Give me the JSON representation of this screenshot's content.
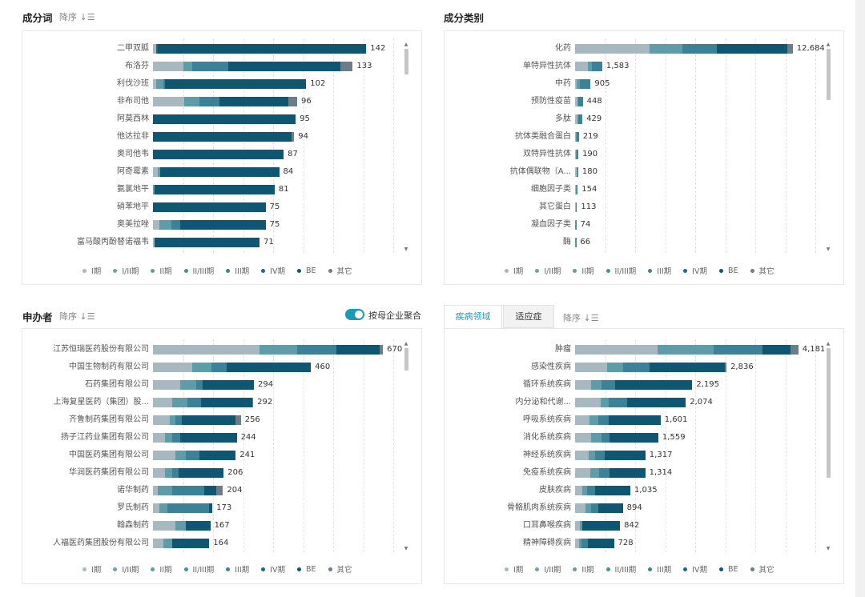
{
  "colors": {
    "phases": [
      "#a7b8c0",
      "#6fa1b0",
      "#5e9caa",
      "#498ea3",
      "#3b8298",
      "#1e6a85",
      "#0f5673",
      "#6b7d87"
    ],
    "accent": "#1a9bb5",
    "grid": "#e3e3e3"
  },
  "legend": [
    "I期",
    "I/II期",
    "II期",
    "II/III期",
    "III期",
    "IV期",
    "BE",
    "其它"
  ],
  "panels": {
    "ingredient": {
      "title": "成分词",
      "sort_label": "降序",
      "sort_icon": "sort-descending-icon"
    },
    "category": {
      "title": "成分类别"
    },
    "sponsor": {
      "title": "申办者",
      "sort_label": "降序",
      "toggle_label": "按母企业聚合",
      "toggle_on": true
    },
    "disease": {
      "tabs": [
        "疾病领域",
        "适应症"
      ],
      "active_tab": 0,
      "sort_label": "降序"
    }
  },
  "chart_data": [
    {
      "type": "bar",
      "orientation": "horizontal",
      "stacked": true,
      "name": "ingredient",
      "categories": [
        "二甲双胍",
        "布洛芬",
        "利伐沙班",
        "非布司他",
        "阿莫西林",
        "他达拉非",
        "奥司他韦",
        "阿奇霉素",
        "氨氯地平",
        "硝苯地平",
        "奥美拉唑",
        "富马酸丙酚替诺福韦"
      ],
      "totals": [
        142,
        133,
        102,
        96,
        95,
        94,
        87,
        84,
        81,
        75,
        75,
        71
      ],
      "series_names": [
        "I期",
        "I/II期",
        "II期",
        "II/III期",
        "III期",
        "IV期",
        "BE",
        "其它"
      ],
      "segments": [
        [
          2,
          0,
          0,
          0,
          0,
          1,
          139,
          0
        ],
        [
          20,
          0,
          6,
          0,
          24,
          0,
          75,
          8
        ],
        [
          2,
          0,
          5,
          0,
          1,
          0,
          94,
          0
        ],
        [
          21,
          0,
          10,
          0,
          13,
          0,
          46,
          6
        ],
        [
          0,
          0,
          0,
          0,
          0,
          0,
          95,
          0
        ],
        [
          0,
          0,
          0,
          0,
          0,
          0,
          92,
          2
        ],
        [
          0,
          0,
          0,
          0,
          0,
          0,
          87,
          0
        ],
        [
          3,
          0,
          2,
          0,
          0,
          0,
          79,
          0
        ],
        [
          0,
          0,
          1,
          0,
          0,
          0,
          80,
          0
        ],
        [
          0,
          0,
          0,
          0,
          0,
          0,
          75,
          0
        ],
        [
          4,
          0,
          8,
          0,
          6,
          0,
          57,
          0
        ],
        [
          1,
          0,
          0,
          0,
          0,
          0,
          70,
          0
        ]
      ],
      "xlim": [
        0,
        160
      ]
    },
    {
      "type": "bar",
      "orientation": "horizontal",
      "stacked": true,
      "name": "category",
      "categories": [
        "化药",
        "单特异性抗体",
        "中药",
        "预防性疫苗",
        "多肽",
        "抗体类融合蛋白",
        "双特异性抗体",
        "抗体偶联物（A...",
        "细胞因子类",
        "其它蛋白",
        "凝血因子类",
        "酶"
      ],
      "totals": [
        12684,
        1583,
        905,
        448,
        429,
        219,
        190,
        180,
        154,
        113,
        74,
        66
      ],
      "series_names": [
        "I期",
        "I/II期",
        "II期",
        "II/III期",
        "III期",
        "IV期",
        "BE",
        "其它"
      ],
      "segments": [
        [
          4350,
          0,
          1900,
          0,
          2000,
          0,
          4100,
          334
        ],
        [
          750,
          0,
          220,
          0,
          613,
          0,
          0,
          0
        ],
        [
          80,
          0,
          200,
          0,
          625,
          0,
          0,
          0
        ],
        [
          150,
          0,
          30,
          0,
          268,
          0,
          0,
          0
        ],
        [
          130,
          0,
          40,
          0,
          259,
          0,
          0,
          0
        ],
        [
          60,
          0,
          40,
          0,
          119,
          0,
          0,
          0
        ],
        [
          70,
          0,
          40,
          0,
          80,
          0,
          0,
          0
        ],
        [
          80,
          0,
          40,
          0,
          60,
          0,
          0,
          0
        ],
        [
          50,
          0,
          40,
          0,
          64,
          0,
          0,
          0
        ],
        [
          40,
          0,
          30,
          0,
          43,
          0,
          0,
          0
        ],
        [
          20,
          0,
          20,
          0,
          34,
          0,
          0,
          0
        ],
        [
          20,
          0,
          20,
          0,
          26,
          0,
          0,
          0
        ]
      ],
      "xlim": [
        0,
        14000
      ]
    },
    {
      "type": "bar",
      "orientation": "horizontal",
      "stacked": true,
      "name": "sponsor",
      "categories": [
        "江苏恒瑞医药股份有限公司",
        "中国生物制药有限公司",
        "石药集团有限公司",
        "上海复星医药（集团）股...",
        "齐鲁制药集团有限公司",
        "扬子江药业集团有限公司",
        "中国医药集团有限公司",
        "华润医药集团有限公司",
        "诺华制药",
        "罗氏制药",
        "翰森制药",
        "人福医药集团股份有限公司"
      ],
      "totals": [
        670,
        460,
        294,
        292,
        256,
        244,
        241,
        206,
        204,
        173,
        167,
        164
      ],
      "series_names": [
        "I期",
        "I/II期",
        "II期",
        "II/III期",
        "III期",
        "IV期",
        "BE",
        "其它"
      ],
      "segments": [
        [
          310,
          0,
          110,
          0,
          115,
          0,
          125,
          10
        ],
        [
          115,
          0,
          55,
          0,
          45,
          0,
          245,
          0
        ],
        [
          80,
          0,
          45,
          0,
          20,
          0,
          149,
          0
        ],
        [
          55,
          0,
          45,
          0,
          40,
          0,
          150,
          2
        ],
        [
          50,
          0,
          15,
          0,
          20,
          0,
          156,
          15
        ],
        [
          35,
          0,
          20,
          0,
          25,
          0,
          164,
          0
        ],
        [
          65,
          0,
          30,
          0,
          40,
          0,
          106,
          0
        ],
        [
          35,
          0,
          20,
          0,
          20,
          0,
          131,
          0
        ],
        [
          15,
          0,
          40,
          0,
          95,
          0,
          34,
          20
        ],
        [
          18,
          0,
          25,
          0,
          120,
          0,
          10,
          0
        ],
        [
          65,
          0,
          30,
          0,
          0,
          0,
          72,
          0
        ],
        [
          30,
          0,
          25,
          0,
          0,
          0,
          109,
          0
        ]
      ],
      "xlim": [
        0,
        700
      ]
    },
    {
      "type": "bar",
      "orientation": "horizontal",
      "stacked": true,
      "name": "disease",
      "categories": [
        "肿瘤",
        "感染性疾病",
        "循环系统疾病",
        "内分泌和代谢...",
        "呼吸系统疾病",
        "消化系统疾病",
        "神经系统疾病",
        "免疫系统疾病",
        "皮肤疾病",
        "骨骼肌肉系统疾病",
        "口耳鼻喉疾病",
        "精神障碍疾病"
      ],
      "totals": [
        4181,
        2836,
        2195,
        2074,
        1601,
        1559,
        1317,
        1314,
        1035,
        894,
        842,
        728
      ],
      "series_names": [
        "I期",
        "I/II期",
        "II期",
        "II/III期",
        "III期",
        "IV期",
        "BE",
        "其它"
      ],
      "segments": [
        [
          1540,
          0,
          1050,
          0,
          920,
          0,
          531,
          140
        ],
        [
          600,
          0,
          300,
          0,
          500,
          0,
          1400,
          36
        ],
        [
          300,
          0,
          200,
          0,
          250,
          0,
          1445,
          0
        ],
        [
          480,
          0,
          150,
          0,
          350,
          0,
          1094,
          0
        ],
        [
          270,
          0,
          160,
          0,
          200,
          0,
          971,
          0
        ],
        [
          300,
          0,
          200,
          0,
          150,
          0,
          909,
          0
        ],
        [
          250,
          0,
          130,
          0,
          170,
          0,
          767,
          0
        ],
        [
          280,
          0,
          170,
          0,
          200,
          0,
          664,
          0
        ],
        [
          130,
          0,
          100,
          0,
          150,
          0,
          655,
          0
        ],
        [
          200,
          0,
          100,
          0,
          130,
          0,
          464,
          0
        ],
        [
          90,
          0,
          40,
          0,
          0,
          0,
          712,
          0
        ],
        [
          80,
          0,
          40,
          0,
          120,
          0,
          488,
          0
        ]
      ],
      "xlim": [
        0,
        4500
      ]
    }
  ]
}
